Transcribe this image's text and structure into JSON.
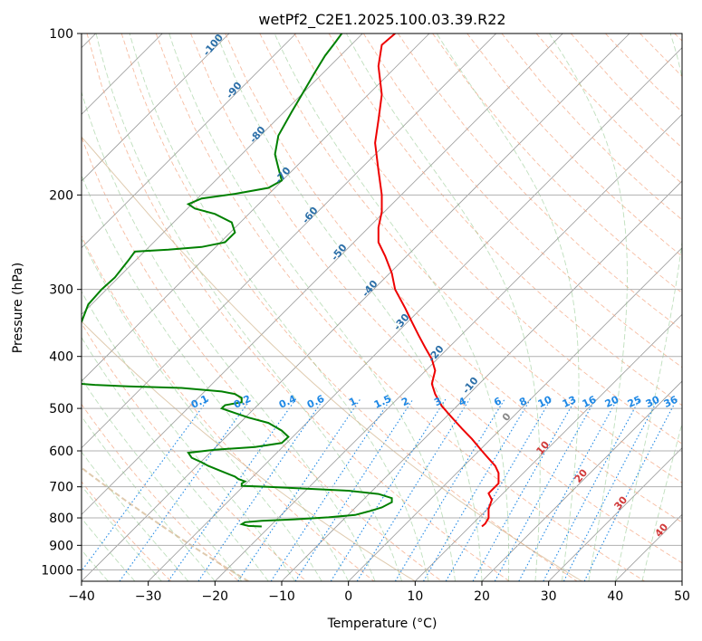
{
  "chart_data": {
    "type": "line",
    "title": "wetPf2_C2E1.2025.100.03.39.R22",
    "xlabel": "Temperature (°C)",
    "ylabel": "Pressure (hPa)",
    "xlim": [
      -40,
      50
    ],
    "ylim_pressure": [
      1050,
      100
    ],
    "y_scale": "log",
    "x_ticks": [
      -40,
      -30,
      -20,
      -10,
      0,
      10,
      20,
      30,
      40,
      50
    ],
    "y_ticks": [
      100,
      200,
      300,
      400,
      500,
      600,
      700,
      800,
      900,
      1000
    ],
    "grid": true,
    "series": [
      {
        "color": "#ee0000",
        "points": [
          [
            20,
            830
          ],
          [
            20.5,
            820
          ],
          [
            21,
            800
          ],
          [
            21,
            770
          ],
          [
            21.5,
            740
          ],
          [
            21,
            720
          ],
          [
            22.5,
            690
          ],
          [
            22.5,
            660
          ],
          [
            22,
            640
          ],
          [
            21,
            620
          ],
          [
            20,
            600
          ],
          [
            18.5,
            570
          ],
          [
            17,
            545
          ],
          [
            15.5,
            520
          ],
          [
            14,
            495
          ],
          [
            13,
            470
          ],
          [
            12.5,
            450
          ],
          [
            13,
            425
          ],
          [
            12.5,
            405
          ],
          [
            11.5,
            385
          ],
          [
            10.5,
            365
          ],
          [
            9.5,
            345
          ],
          [
            8.5,
            325
          ],
          [
            7,
            300
          ],
          [
            6.5,
            280
          ],
          [
            5.5,
            260
          ],
          [
            4.5,
            245
          ],
          [
            4.5,
            230
          ],
          [
            5,
            215
          ],
          [
            5,
            200
          ],
          [
            4.5,
            180
          ],
          [
            4,
            160
          ],
          [
            4.5,
            145
          ],
          [
            5,
            130
          ],
          [
            4.5,
            115
          ],
          [
            5,
            105
          ],
          [
            7,
            100
          ]
        ]
      },
      {
        "color": "#008000",
        "points": [
          [
            -13,
            830
          ],
          [
            -15,
            828
          ],
          [
            -16,
            822
          ],
          [
            -15.5,
            815
          ],
          [
            -13,
            810
          ],
          [
            -8,
            805
          ],
          [
            -3,
            798
          ],
          [
            1,
            790
          ],
          [
            3,
            778
          ],
          [
            5,
            765
          ],
          [
            6.5,
            748
          ],
          [
            6.5,
            735
          ],
          [
            4.5,
            722
          ],
          [
            0,
            712
          ],
          [
            -7,
            705
          ],
          [
            -12,
            700
          ],
          [
            -16,
            697
          ],
          [
            -16,
            690
          ],
          [
            -15.5,
            684
          ],
          [
            -16.5,
            677
          ],
          [
            -17,
            670
          ],
          [
            -19,
            655
          ],
          [
            -21,
            640
          ],
          [
            -22,
            630
          ],
          [
            -23.5,
            618
          ],
          [
            -24,
            605
          ],
          [
            -20,
            597
          ],
          [
            -14,
            590
          ],
          [
            -10,
            580
          ],
          [
            -9,
            565
          ],
          [
            -10,
            550
          ],
          [
            -12,
            532
          ],
          [
            -15,
            520
          ],
          [
            -17,
            510
          ],
          [
            -19,
            500
          ],
          [
            -18.5,
            493
          ],
          [
            -16,
            487
          ],
          [
            -16,
            478
          ],
          [
            -17,
            470
          ],
          [
            -19,
            465
          ],
          [
            -25,
            458
          ],
          [
            -33,
            455
          ],
          [
            -38,
            452
          ],
          [
            -40,
            450
          ]
        ]
      },
      {
        "color": "#008000",
        "points": [
          [
            -40,
            345
          ],
          [
            -39,
            320
          ],
          [
            -37,
            300
          ],
          [
            -35,
            285
          ],
          [
            -33,
            265
          ],
          [
            -32,
            255
          ],
          [
            -27,
            253
          ],
          [
            -22,
            250
          ],
          [
            -18.5,
            245
          ],
          [
            -17,
            235
          ],
          [
            -17.5,
            225
          ],
          [
            -20,
            217
          ],
          [
            -23,
            212
          ],
          [
            -24,
            208
          ],
          [
            -22,
            203
          ],
          [
            -17,
            199
          ],
          [
            -12,
            194
          ],
          [
            -10,
            188
          ],
          [
            -10.5,
            178
          ],
          [
            -11,
            168
          ],
          [
            -10.5,
            155
          ],
          [
            -8.5,
            140
          ],
          [
            -6.5,
            127
          ],
          [
            -5,
            118
          ],
          [
            -3.5,
            110
          ],
          [
            -2,
            104
          ],
          [
            -1,
            100
          ]
        ]
      }
    ],
    "height_labels": {
      "color": "#2c6fa8",
      "values": [
        "-100",
        "-90",
        "-80",
        "-70",
        "-60",
        "-50",
        "-40",
        "-30",
        "-20",
        "-10",
        "0",
        "10",
        "20",
        "30",
        "40"
      ],
      "colors_upper": "#2c6fa8",
      "colors_zero": "#888888",
      "colors_lower": "#d13a3a"
    },
    "mixing_ratio_labels": {
      "color": "#1e88e5",
      "values": [
        "0.1",
        "0.2",
        "0.4",
        "0.6",
        "1",
        "1.5",
        "2",
        "3",
        "4",
        "6",
        "8",
        "10",
        "13",
        "16",
        "20",
        "25",
        "30",
        "36"
      ]
    }
  }
}
